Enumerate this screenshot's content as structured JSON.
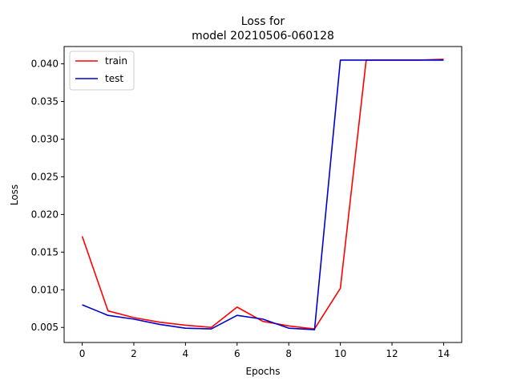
{
  "chart_data": {
    "type": "line",
    "title_line1": "Loss for",
    "title_line2": "model 20210506-060128",
    "xlabel": "Epochs",
    "ylabel": "Loss",
    "xlim": [
      -0.7,
      14.7
    ],
    "ylim": [
      0.003,
      0.0423
    ],
    "xticks": [
      0,
      2,
      4,
      6,
      8,
      10,
      12,
      14
    ],
    "yticks": [
      0.005,
      0.01,
      0.015,
      0.02,
      0.025,
      0.03,
      0.035,
      0.04
    ],
    "ytick_labels": [
      "0.005",
      "0.010",
      "0.015",
      "0.020",
      "0.025",
      "0.030",
      "0.035",
      "0.040"
    ],
    "grid": false,
    "legend_position": "top-left",
    "x": [
      0,
      1,
      2,
      3,
      4,
      5,
      6,
      7,
      8,
      9,
      10,
      11,
      12,
      13,
      14
    ],
    "series": [
      {
        "name": "train",
        "color": "#ff0000",
        "values": [
          0.0171,
          0.0072,
          0.0063,
          0.0057,
          0.0053,
          0.005,
          0.0077,
          0.0058,
          0.0052,
          0.0048,
          0.0102,
          0.0405,
          0.0405,
          0.0405,
          0.0406
        ]
      },
      {
        "name": "test",
        "color": "#0000cc",
        "values": [
          0.008,
          0.0066,
          0.0061,
          0.0054,
          0.0049,
          0.0048,
          0.0066,
          0.0061,
          0.0049,
          0.0047,
          0.0405,
          0.0405,
          0.0405,
          0.0405,
          0.0405
        ]
      }
    ]
  }
}
